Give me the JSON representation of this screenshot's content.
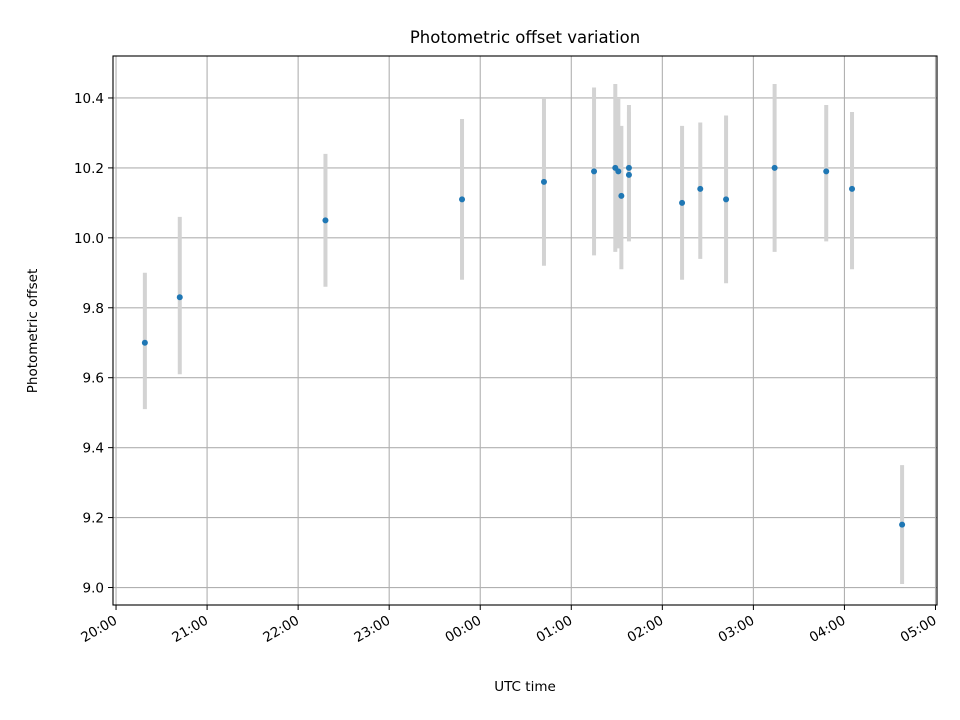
{
  "chart_data": {
    "type": "scatter",
    "title": "Photometric offset variation",
    "xlabel": "UTC time",
    "ylabel": "Photometric offset",
    "x_is_time": true,
    "xlim": [
      "2000-01-01T19:58",
      "2000-01-02T05:01"
    ],
    "ylim": [
      8.95,
      10.52
    ],
    "grid": true,
    "x_ticks": [
      {
        "t": "2000-01-01T20:00",
        "label": "20:00"
      },
      {
        "t": "2000-01-01T21:00",
        "label": "21:00"
      },
      {
        "t": "2000-01-01T22:00",
        "label": "22:00"
      },
      {
        "t": "2000-01-01T23:00",
        "label": "23:00"
      },
      {
        "t": "2000-01-02T00:00",
        "label": "00:00"
      },
      {
        "t": "2000-01-02T01:00",
        "label": "01:00"
      },
      {
        "t": "2000-01-02T02:00",
        "label": "02:00"
      },
      {
        "t": "2000-01-02T03:00",
        "label": "03:00"
      },
      {
        "t": "2000-01-02T04:00",
        "label": "04:00"
      },
      {
        "t": "2000-01-02T05:00",
        "label": "05:00"
      }
    ],
    "y_ticks": [
      {
        "v": 9.0,
        "label": "9.0"
      },
      {
        "v": 9.2,
        "label": "9.2"
      },
      {
        "v": 9.4,
        "label": "9.4"
      },
      {
        "v": 9.6,
        "label": "9.6"
      },
      {
        "v": 9.8,
        "label": "9.8"
      },
      {
        "v": 10.0,
        "label": "10.0"
      },
      {
        "v": 10.2,
        "label": "10.2"
      },
      {
        "v": 10.4,
        "label": "10.4"
      }
    ],
    "point_color": "#1f77b4",
    "errorbar_color": "#d3d3d3",
    "points": [
      {
        "t": "2000-01-01T20:19",
        "y": 9.7,
        "ylow": 9.51,
        "yhigh": 9.9
      },
      {
        "t": "2000-01-01T20:42",
        "y": 9.83,
        "ylow": 9.61,
        "yhigh": 10.06
      },
      {
        "t": "2000-01-01T22:18",
        "y": 10.05,
        "ylow": 9.86,
        "yhigh": 10.24
      },
      {
        "t": "2000-01-01T23:48",
        "y": 10.11,
        "ylow": 9.88,
        "yhigh": 10.34
      },
      {
        "t": "2000-01-02T00:42",
        "y": 10.16,
        "ylow": 9.92,
        "yhigh": 10.4
      },
      {
        "t": "2000-01-02T01:15",
        "y": 10.19,
        "ylow": 9.95,
        "yhigh": 10.43
      },
      {
        "t": "2000-01-02T01:29",
        "y": 10.2,
        "ylow": 9.96,
        "yhigh": 10.44
      },
      {
        "t": "2000-01-02T01:31",
        "y": 10.19,
        "ylow": 9.97,
        "yhigh": 10.4
      },
      {
        "t": "2000-01-02T01:33",
        "y": 10.12,
        "ylow": 9.91,
        "yhigh": 10.32
      },
      {
        "t": "2000-01-02T01:38",
        "y": 10.2,
        "ylow": 9.99,
        "yhigh": 10.38
      },
      {
        "t": "2000-01-02T01:38",
        "y": 10.18,
        "ylow": 10.0,
        "yhigh": 10.36
      },
      {
        "t": "2000-01-02T02:13",
        "y": 10.1,
        "ylow": 9.88,
        "yhigh": 10.32
      },
      {
        "t": "2000-01-02T02:25",
        "y": 10.14,
        "ylow": 9.94,
        "yhigh": 10.33
      },
      {
        "t": "2000-01-02T02:42",
        "y": 10.11,
        "ylow": 9.87,
        "yhigh": 10.35
      },
      {
        "t": "2000-01-02T03:14",
        "y": 10.2,
        "ylow": 9.96,
        "yhigh": 10.44
      },
      {
        "t": "2000-01-02T03:48",
        "y": 10.19,
        "ylow": 9.99,
        "yhigh": 10.38
      },
      {
        "t": "2000-01-02T04:05",
        "y": 10.14,
        "ylow": 9.91,
        "yhigh": 10.36
      },
      {
        "t": "2000-01-02T04:38",
        "y": 9.18,
        "ylow": 9.01,
        "yhigh": 9.35
      }
    ]
  }
}
